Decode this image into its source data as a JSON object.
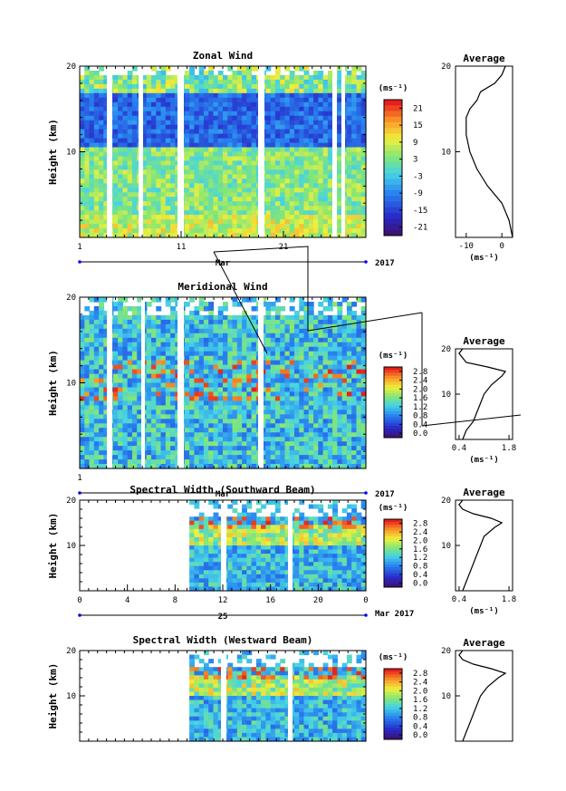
{
  "figure": {
    "year": "2017",
    "month": "Mar",
    "units": "(ms⁻¹)",
    "avg_title": "Average",
    "height_label": "Height (km)"
  },
  "chart_data": [
    {
      "id": "zonal",
      "type": "heatmap",
      "title": "Zonal Wind",
      "ylabel": "Height (km)",
      "ylim": [
        0,
        20
      ],
      "yticks": [
        10,
        20
      ],
      "xticks": [
        "1",
        "11",
        "21"
      ],
      "xlabel": "Mar",
      "year": "2017",
      "colorbar": {
        "label": "(ms⁻¹)",
        "ticks": [
          "21",
          "15",
          "9",
          "3",
          "-3",
          "-9",
          "-15",
          "-21"
        ],
        "range": [
          -24,
          24
        ]
      },
      "average": {
        "xticks": [
          "-10",
          "0"
        ],
        "xunit": "(ms⁻¹)",
        "ylim": [
          0,
          20
        ],
        "profile_height": [
          0,
          2,
          4,
          6,
          8,
          10,
          12,
          14,
          15,
          16,
          17,
          18,
          19,
          20
        ],
        "profile_value": [
          3,
          2,
          0,
          -4,
          -7,
          -9,
          -10,
          -10,
          -9,
          -7,
          -6,
          -2,
          0,
          1
        ]
      }
    },
    {
      "id": "meridional",
      "type": "heatmap",
      "title": "Meridional Wind",
      "ylabel": "Height (km)",
      "ylim": [
        0,
        20
      ],
      "yticks": [
        10,
        20
      ],
      "xticks": [
        "1"
      ],
      "xlabel": "Mar",
      "year": "2017",
      "colorbar": {
        "label": "(ms⁻¹)",
        "ticks": [
          "2.8",
          "2.4",
          "2.0",
          "1.6",
          "1.2",
          "0.8",
          "0.4",
          "0.0"
        ],
        "range": [
          0,
          3
        ]
      },
      "average": {
        "xticks": [
          "0.4",
          "1.8"
        ],
        "xunit": "(ms⁻¹)",
        "ylim": [
          0,
          20
        ],
        "profile_height": [
          0,
          2,
          4,
          6,
          8,
          10,
          12,
          14,
          15,
          16,
          17,
          18,
          19,
          20
        ],
        "profile_value": [
          0.5,
          0.6,
          0.8,
          0.9,
          1.0,
          1.1,
          1.3,
          1.6,
          1.7,
          1.2,
          0.6,
          0.5,
          0.4,
          0.5
        ]
      }
    },
    {
      "id": "spectral_south",
      "type": "heatmap",
      "title": "Spectral Width (Southward Beam)",
      "ylabel": "Height (km)",
      "ylim": [
        0,
        20
      ],
      "yticks": [
        10,
        20
      ],
      "xticks": [
        "0",
        "4",
        "8",
        "12",
        "16",
        "20",
        "0"
      ],
      "xlabel": "25",
      "month": "Mar",
      "year": "2017",
      "colorbar": {
        "label": "(ms⁻¹)",
        "ticks": [
          "2.8",
          "2.4",
          "2.0",
          "1.6",
          "1.2",
          "0.8",
          "0.4",
          "0.0"
        ],
        "range": [
          0,
          3
        ]
      },
      "average": {
        "xticks": [
          "0.4",
          "1.8"
        ],
        "xunit": "(ms⁻¹)",
        "ylim": [
          0,
          20
        ],
        "profile_height": [
          0,
          2,
          4,
          6,
          8,
          10,
          12,
          14,
          15,
          16,
          17,
          18,
          19,
          20
        ],
        "profile_value": [
          0.5,
          0.6,
          0.7,
          0.8,
          0.9,
          1.0,
          1.1,
          1.4,
          1.6,
          1.3,
          0.8,
          0.5,
          0.4,
          0.5
        ]
      }
    },
    {
      "id": "spectral_west",
      "type": "heatmap",
      "title": "Spectral Width (Westward Beam)",
      "ylabel": "Height (km)",
      "ylim": [
        0,
        20
      ],
      "yticks": [
        10,
        20
      ],
      "colorbar": {
        "label": "(ms⁻¹)",
        "ticks": [
          "2.8",
          "2.4",
          "2.0",
          "1.6",
          "1.2",
          "0.8",
          "0.4",
          "0.0"
        ],
        "range": [
          0,
          3
        ]
      },
      "average": {
        "xticks": [],
        "xunit": "",
        "ylim": [
          0,
          20
        ],
        "profile_height": [
          0,
          2,
          4,
          6,
          8,
          10,
          12,
          14,
          15,
          16,
          17,
          18,
          19,
          20
        ],
        "profile_value": [
          0.5,
          0.6,
          0.7,
          0.8,
          0.9,
          1.0,
          1.2,
          1.5,
          1.7,
          1.3,
          0.8,
          0.5,
          0.4,
          0.5
        ]
      }
    }
  ]
}
